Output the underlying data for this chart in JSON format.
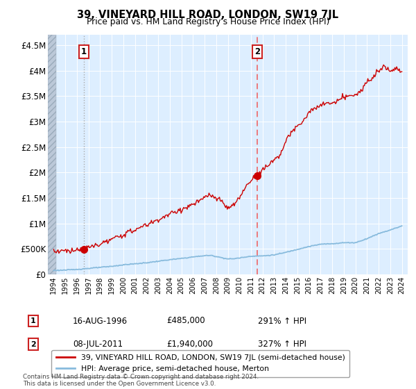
{
  "title": "39, VINEYARD HILL ROAD, LONDON, SW19 7JL",
  "subtitle": "Price paid vs. HM Land Registry's House Price Index (HPI)",
  "ylabel_ticks": [
    "£0",
    "£500K",
    "£1M",
    "£1.5M",
    "£2M",
    "£2.5M",
    "£3M",
    "£3.5M",
    "£4M",
    "£4.5M"
  ],
  "ytick_values": [
    0,
    500000,
    1000000,
    1500000,
    2000000,
    2500000,
    3000000,
    3500000,
    4000000,
    4500000
  ],
  "ylim": [
    0,
    4700000
  ],
  "xlim_start": 1993.5,
  "xlim_end": 2024.5,
  "hatch_end": 1994.2,
  "sale1_x": 1996.62,
  "sale1_y": 485000,
  "sale2_x": 2011.52,
  "sale2_y": 1940000,
  "hpi_color": "#88bbdd",
  "price_color": "#cc0000",
  "marker_color": "#cc0000",
  "vline1_color": "#aaaaaa",
  "vline2_color": "#ee6666",
  "background_plot": "#ddeeff",
  "hatch_color": "#bbc8d8",
  "legend_label_price": "39, VINEYARD HILL ROAD, LONDON, SW19 7JL (semi-detached house)",
  "legend_label_hpi": "HPI: Average price, semi-detached house, Merton",
  "annotation1_label": "1",
  "annotation2_label": "2",
  "note1_num": "1",
  "note1_date": "16-AUG-1996",
  "note1_price": "£485,000",
  "note1_hpi": "291% ↑ HPI",
  "note2_num": "2",
  "note2_date": "08-JUL-2011",
  "note2_price": "£1,940,000",
  "note2_hpi": "327% ↑ HPI",
  "copyright": "Contains HM Land Registry data © Crown copyright and database right 2024.\nThis data is licensed under the Open Government Licence v3.0.",
  "xticks": [
    1994,
    1995,
    1996,
    1997,
    1998,
    1999,
    2000,
    2001,
    2002,
    2003,
    2004,
    2005,
    2006,
    2007,
    2008,
    2009,
    2010,
    2011,
    2012,
    2013,
    2014,
    2015,
    2016,
    2017,
    2018,
    2019,
    2020,
    2021,
    2022,
    2023,
    2024
  ]
}
